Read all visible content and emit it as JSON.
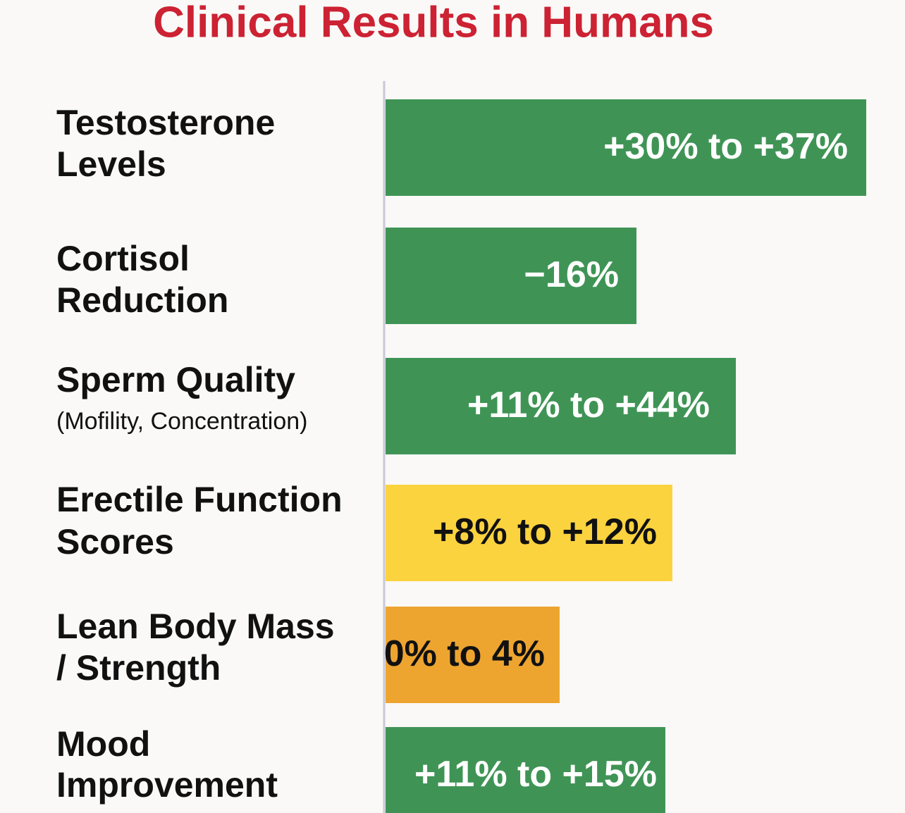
{
  "title": "Clinical Results in Humans",
  "rows": [
    {
      "label": [
        "Testosterone",
        "Levels"
      ],
      "result": "+30% to +37%",
      "color": "#3f9455",
      "text_color": "#ffffff"
    },
    {
      "label": [
        "Cortisol",
        "Reduction"
      ],
      "result": "−16%",
      "color": "#3f9455",
      "text_color": "#ffffff"
    },
    {
      "label": [
        "Sperm Quality"
      ],
      "note": "(Mofility, Concentration)",
      "result": "+11% to +44%",
      "color": "#3f9455",
      "text_color": "#ffffff"
    },
    {
      "label": [
        "Erectile Function",
        "Scores"
      ],
      "result": "+8% to +12%",
      "color": "#fbd33f",
      "text_color": "#111111"
    },
    {
      "label": [
        "Lean Body Mass",
        "/ Strength"
      ],
      "result": "0% to 4%",
      "color": "#eda530",
      "text_color": "#111111"
    },
    {
      "label": [
        "Mood",
        "Improvement"
      ],
      "result": "+11% to +15%",
      "color": "#3f9455",
      "text_color": "#ffffff"
    }
  ]
}
